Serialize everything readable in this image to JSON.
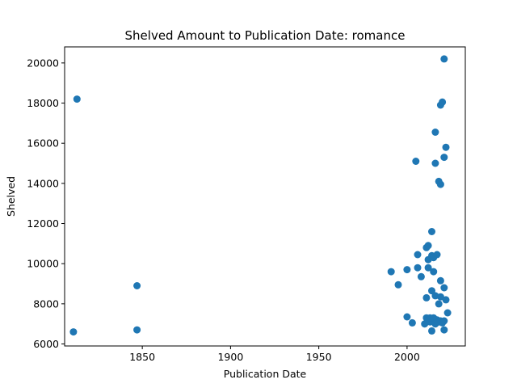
{
  "chart_data": {
    "type": "scatter",
    "title": "Shelved Amount to Publication Date: romance",
    "xlabel": "Publication Date",
    "ylabel": "Shelved",
    "xlim": [
      1806,
      2033
    ],
    "ylim": [
      5900,
      20800
    ],
    "xticks": [
      1850,
      1900,
      1950,
      2000
    ],
    "yticks": [
      6000,
      8000,
      10000,
      12000,
      14000,
      16000,
      18000,
      20000
    ],
    "xtick_labels": [
      "1850",
      "1900",
      "1950",
      "2000"
    ],
    "ytick_labels": [
      "6000",
      "8000",
      "10000",
      "12000",
      "14000",
      "16000",
      "18000",
      "20000"
    ],
    "marker_color": "#1f77b4",
    "grid": false,
    "points": [
      {
        "x": 1811,
        "y": 6600
      },
      {
        "x": 1813,
        "y": 18200
      },
      {
        "x": 1847,
        "y": 8900
      },
      {
        "x": 1847,
        "y": 6700
      },
      {
        "x": 1991,
        "y": 9600
      },
      {
        "x": 1995,
        "y": 8950
      },
      {
        "x": 2000,
        "y": 9700
      },
      {
        "x": 2000,
        "y": 7350
      },
      {
        "x": 2003,
        "y": 7050
      },
      {
        "x": 2005,
        "y": 15100
      },
      {
        "x": 2006,
        "y": 10450
      },
      {
        "x": 2006,
        "y": 9800
      },
      {
        "x": 2008,
        "y": 9350
      },
      {
        "x": 2010,
        "y": 7000
      },
      {
        "x": 2011,
        "y": 10800
      },
      {
        "x": 2011,
        "y": 8300
      },
      {
        "x": 2011,
        "y": 7300
      },
      {
        "x": 2012,
        "y": 10900
      },
      {
        "x": 2012,
        "y": 10200
      },
      {
        "x": 2012,
        "y": 9800
      },
      {
        "x": 2012,
        "y": 7200
      },
      {
        "x": 2013,
        "y": 7100
      },
      {
        "x": 2013,
        "y": 7300
      },
      {
        "x": 2014,
        "y": 11600
      },
      {
        "x": 2014,
        "y": 10400
      },
      {
        "x": 2014,
        "y": 8650
      },
      {
        "x": 2014,
        "y": 6650
      },
      {
        "x": 2015,
        "y": 10300
      },
      {
        "x": 2015,
        "y": 9600
      },
      {
        "x": 2015,
        "y": 7300
      },
      {
        "x": 2016,
        "y": 16550
      },
      {
        "x": 2016,
        "y": 15000
      },
      {
        "x": 2016,
        "y": 8400
      },
      {
        "x": 2016,
        "y": 7000
      },
      {
        "x": 2017,
        "y": 10450
      },
      {
        "x": 2017,
        "y": 7200
      },
      {
        "x": 2018,
        "y": 14100
      },
      {
        "x": 2018,
        "y": 8000
      },
      {
        "x": 2018,
        "y": 7100
      },
      {
        "x": 2019,
        "y": 17900
      },
      {
        "x": 2019,
        "y": 13950
      },
      {
        "x": 2019,
        "y": 9150
      },
      {
        "x": 2019,
        "y": 8350
      },
      {
        "x": 2019,
        "y": 7150
      },
      {
        "x": 2020,
        "y": 18050
      },
      {
        "x": 2020,
        "y": 7050
      },
      {
        "x": 2021,
        "y": 20200
      },
      {
        "x": 2021,
        "y": 15300
      },
      {
        "x": 2021,
        "y": 8800
      },
      {
        "x": 2021,
        "y": 7150
      },
      {
        "x": 2021,
        "y": 6700
      },
      {
        "x": 2022,
        "y": 15800
      },
      {
        "x": 2022,
        "y": 8200
      },
      {
        "x": 2023,
        "y": 7550
      }
    ]
  }
}
